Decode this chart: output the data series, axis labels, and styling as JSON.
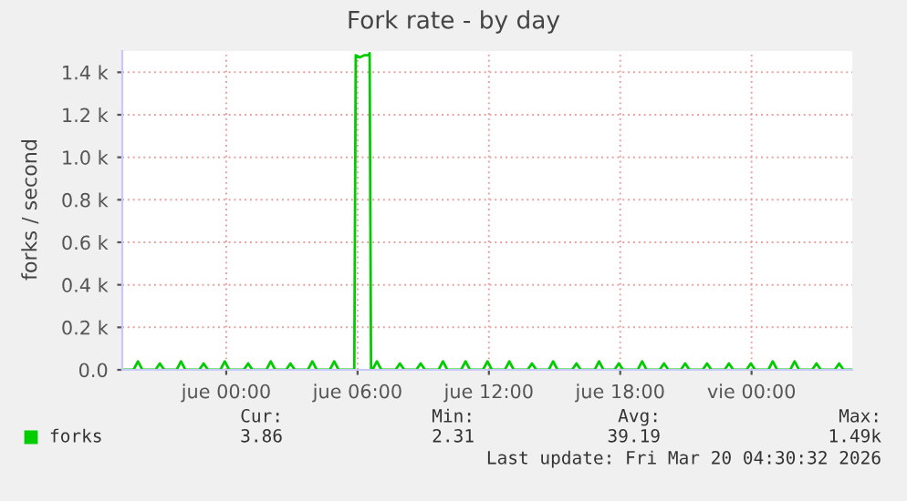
{
  "chart_data": {
    "type": "line",
    "title": "Fork rate - by day",
    "ylabel": "forks / second",
    "xlim": [
      "2026-03-18T19:15",
      "2026-03-20T04:36"
    ],
    "xticks": [
      {
        "value": "2026-03-19T00:00",
        "label": "jue 00:00"
      },
      {
        "value": "2026-03-19T06:00",
        "label": "jue 06:00"
      },
      {
        "value": "2026-03-19T12:00",
        "label": "jue 12:00"
      },
      {
        "value": "2026-03-19T18:00",
        "label": "jue 18:00"
      },
      {
        "value": "2026-03-20T00:00",
        "label": "vie 00:00"
      }
    ],
    "ylim": [
      0,
      1500
    ],
    "yticks": [
      {
        "value": 0,
        "label": "0.0"
      },
      {
        "value": 200,
        "label": "0.2 k"
      },
      {
        "value": 400,
        "label": "0.4 k"
      },
      {
        "value": 600,
        "label": "0.6 k"
      },
      {
        "value": 800,
        "label": "0.8 k"
      },
      {
        "value": 1000,
        "label": "1.0 k"
      },
      {
        "value": 1200,
        "label": "1.2 k"
      },
      {
        "value": 1400,
        "label": "1.4 k"
      }
    ],
    "grid": true,
    "legend": "bottom left",
    "series": [
      {
        "name": "forks",
        "color": "#00cc00",
        "x": [
          "2026-03-18T19:15",
          "2026-03-18T19:46",
          "2026-03-18T19:58",
          "2026-03-18T20:10",
          "2026-03-18T20:46",
          "2026-03-18T20:58",
          "2026-03-18T21:10",
          "2026-03-18T21:44",
          "2026-03-18T21:56",
          "2026-03-18T22:08",
          "2026-03-18T22:46",
          "2026-03-18T22:58",
          "2026-03-18T23:10",
          "2026-03-18T23:44",
          "2026-03-18T23:56",
          "2026-03-19T00:08",
          "2026-03-19T00:48",
          "2026-03-19T01:00",
          "2026-03-19T01:12",
          "2026-03-19T01:50",
          "2026-03-19T02:02",
          "2026-03-19T02:14",
          "2026-03-19T02:44",
          "2026-03-19T02:56",
          "2026-03-19T03:08",
          "2026-03-19T03:44",
          "2026-03-19T03:56",
          "2026-03-19T04:08",
          "2026-03-19T04:44",
          "2026-03-19T04:56",
          "2026-03-19T05:08",
          "2026-03-19T05:51",
          "2026-03-19T05:55",
          "2026-03-19T06:06",
          "2026-03-19T06:18",
          "2026-03-19T06:30",
          "2026-03-19T06:33",
          "2026-03-19T06:37",
          "2026-03-19T06:41",
          "2026-03-19T06:53",
          "2026-03-19T07:05",
          "2026-03-19T07:44",
          "2026-03-19T07:56",
          "2026-03-19T08:08",
          "2026-03-19T08:41",
          "2026-03-19T08:53",
          "2026-03-19T09:05",
          "2026-03-19T09:42",
          "2026-03-19T09:54",
          "2026-03-19T10:06",
          "2026-03-19T10:44",
          "2026-03-19T10:56",
          "2026-03-19T11:08",
          "2026-03-19T11:44",
          "2026-03-19T11:56",
          "2026-03-19T12:08",
          "2026-03-19T12:44",
          "2026-03-19T12:56",
          "2026-03-19T13:08",
          "2026-03-19T13:46",
          "2026-03-19T13:58",
          "2026-03-19T14:10",
          "2026-03-19T14:44",
          "2026-03-19T14:56",
          "2026-03-19T15:08",
          "2026-03-19T15:48",
          "2026-03-19T16:00",
          "2026-03-19T16:12",
          "2026-03-19T16:50",
          "2026-03-19T17:02",
          "2026-03-19T17:14",
          "2026-03-19T17:44",
          "2026-03-19T17:56",
          "2026-03-19T18:08",
          "2026-03-19T18:48",
          "2026-03-19T19:00",
          "2026-03-19T19:12",
          "2026-03-19T19:48",
          "2026-03-19T20:00",
          "2026-03-19T20:12",
          "2026-03-19T20:46",
          "2026-03-19T20:58",
          "2026-03-19T21:10",
          "2026-03-19T21:46",
          "2026-03-19T21:58",
          "2026-03-19T22:10",
          "2026-03-19T22:46",
          "2026-03-19T22:58",
          "2026-03-19T23:10",
          "2026-03-19T23:46",
          "2026-03-19T23:58",
          "2026-03-20T00:10",
          "2026-03-20T00:46",
          "2026-03-20T00:58",
          "2026-03-20T01:10",
          "2026-03-20T01:46",
          "2026-03-20T01:58",
          "2026-03-20T02:10",
          "2026-03-20T02:46",
          "2026-03-20T02:58",
          "2026-03-20T03:10",
          "2026-03-20T03:48",
          "2026-03-20T04:00",
          "2026-03-20T04:12",
          "2026-03-20T04:36"
        ],
        "values": [
          0,
          0,
          40,
          0,
          0,
          30,
          0,
          0,
          40,
          0,
          0,
          30,
          0,
          0,
          40,
          0,
          0,
          30,
          0,
          0,
          40,
          0,
          0,
          30,
          0,
          0,
          40,
          0,
          0,
          40,
          0,
          0,
          1480,
          1470,
          1480,
          1480,
          1490,
          0,
          0,
          40,
          0,
          0,
          30,
          0,
          0,
          30,
          0,
          0,
          40,
          0,
          0,
          40,
          0,
          0,
          40,
          0,
          0,
          40,
          0,
          0,
          30,
          0,
          0,
          40,
          0,
          0,
          30,
          0,
          0,
          40,
          0,
          0,
          30,
          0,
          0,
          40,
          0,
          0,
          30,
          0,
          0,
          30,
          0,
          0,
          30,
          0,
          0,
          30,
          0,
          0,
          30,
          0,
          0,
          40,
          0,
          0,
          40,
          0,
          0,
          30,
          0,
          0,
          30,
          0,
          0
        ]
      }
    ],
    "annotations": [
      "Cur:",
      "3.86",
      "Min:",
      "2.31",
      "Avg:",
      "39.19",
      "Max:",
      "1.49k",
      "Last update: Fri Mar 20 04:30:32 2026"
    ]
  }
}
